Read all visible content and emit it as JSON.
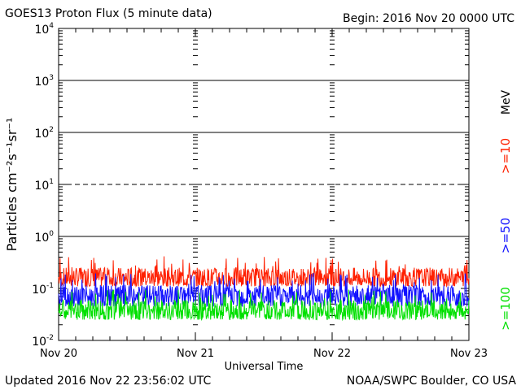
{
  "header": {
    "title": "GOES13 Proton Flux (5 minute data)",
    "begin": "Begin: 2016 Nov 20 0000 UTC"
  },
  "footer": {
    "updated": "Updated 2016 Nov 22 23:56:02 UTC",
    "credit": "NOAA/SWPC Boulder, CO USA"
  },
  "colors": {
    "ge10": "#ff2000",
    "ge50": "#1010ff",
    "ge100": "#00e000",
    "axis": "#000000"
  },
  "chart_data": {
    "type": "line",
    "ylabel": "Particles cm⁻²s⁻¹sr⁻¹",
    "xlabel": "Universal Time",
    "yscale": "log",
    "ylim": [
      0.01,
      10000
    ],
    "y_ticks": [
      {
        "base": "10",
        "exp": "-2"
      },
      {
        "base": "10",
        "exp": "-1"
      },
      {
        "base": "10",
        "exp": "0"
      },
      {
        "base": "10",
        "exp": "1"
      },
      {
        "base": "10",
        "exp": "2"
      },
      {
        "base": "10",
        "exp": "3"
      },
      {
        "base": "10",
        "exp": "4"
      }
    ],
    "x_ticks": [
      "Nov 20",
      "Nov 21",
      "Nov 22",
      "Nov 23"
    ],
    "x_range_days": [
      0,
      3
    ],
    "right_label_unit": "MeV",
    "grid": {
      "solid_levels": [
        1,
        100,
        1000
      ],
      "dashed_levels": [
        10
      ]
    },
    "series": [
      {
        "name": ">=10",
        "color": "#ff2000",
        "typical": 0.14,
        "low": 0.11,
        "high": 0.42
      },
      {
        "name": ">=50",
        "color": "#1010ff",
        "typical": 0.065,
        "low": 0.045,
        "high": 0.2
      },
      {
        "name": ">=100",
        "color": "#00e000",
        "typical": 0.033,
        "low": 0.025,
        "high": 0.095
      }
    ]
  }
}
